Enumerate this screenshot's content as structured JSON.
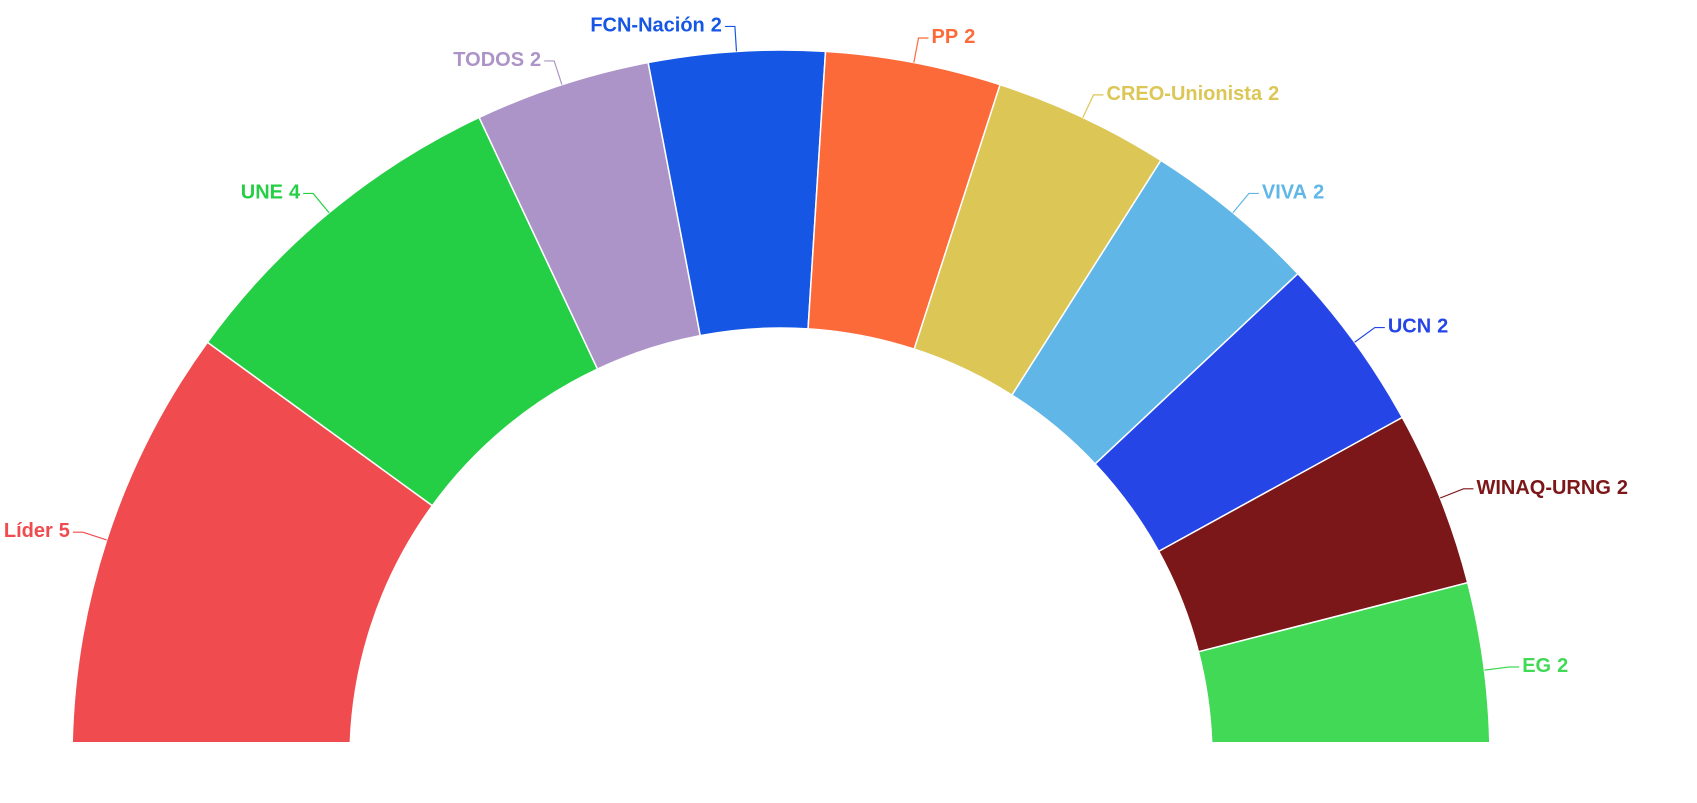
{
  "chart_data": {
    "type": "semi-donut",
    "categories": [
      "Líder",
      "UNE",
      "TODOS",
      "FCN-Nación",
      "PP",
      "CREO-Unionista",
      "VIVA",
      "UCN",
      "WINAQ-URNG",
      "EG"
    ],
    "values": [
      5,
      4,
      2,
      2,
      2,
      2,
      2,
      2,
      2,
      2
    ],
    "colors": [
      "#f04b4f",
      "#25cf45",
      "#ad94c8",
      "#1656e4",
      "#fd6a3a",
      "#dbc656",
      "#60b6e6",
      "#2545e6",
      "#7c1719",
      "#42d957"
    ]
  }
}
